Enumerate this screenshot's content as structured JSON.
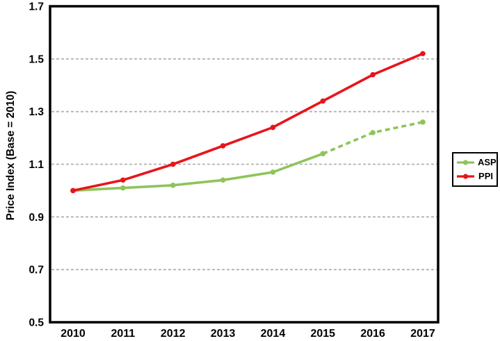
{
  "chart_data": {
    "type": "line",
    "title": "",
    "categories": [
      "2010",
      "2011",
      "2012",
      "2013",
      "2014",
      "2015",
      "2016",
      "2017"
    ],
    "xlabel": "",
    "ylabel": "Price Index (Base = 2010)",
    "ylim": [
      0.5,
      1.7
    ],
    "ytick_labels": [
      "0.5",
      "0.7",
      "0.9",
      "1.1",
      "1.3",
      "1.5",
      "1.7"
    ],
    "ytick_values": [
      0.5,
      0.7,
      0.9,
      1.1,
      1.3,
      1.5,
      1.7
    ],
    "gridlines": {
      "values": [
        0.7,
        0.9,
        1.1,
        1.3,
        1.5
      ],
      "style": "dashed",
      "color": "#b2b2b2"
    },
    "series": [
      {
        "name": "ASP",
        "color": "#8ec45a",
        "marker": "circle",
        "values": [
          1.0,
          1.01,
          1.02,
          1.04,
          1.07,
          1.14,
          1.22,
          1.26
        ],
        "line_style": "solid-then-dashed",
        "dashed_from_index": 5
      },
      {
        "name": "PPI",
        "color": "#e8141b",
        "marker": "circle",
        "values": [
          1.0,
          1.04,
          1.1,
          1.17,
          1.24,
          1.34,
          1.44,
          1.52
        ],
        "line_style": "solid",
        "dashed_from_index": null
      }
    ],
    "legend": {
      "position": "right-outside",
      "entries": [
        "ASP",
        "PPI"
      ]
    },
    "colors": {
      "axis_border": "#000000",
      "background": "#ffffff",
      "text": "#000000"
    }
  }
}
